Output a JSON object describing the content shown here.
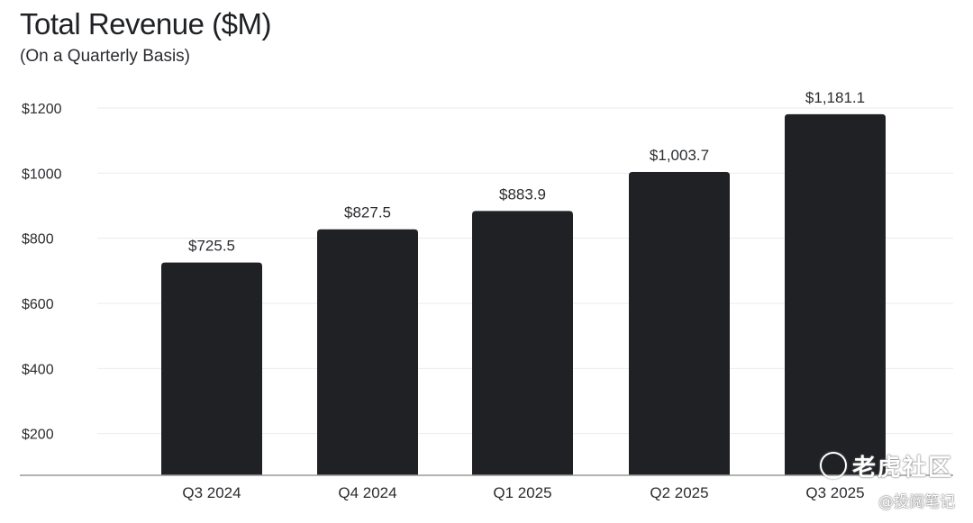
{
  "chart_data": {
    "type": "bar",
    "title": "Total Revenue ($M)",
    "subtitle": "(On a Quarterly Basis)",
    "xlabel": "",
    "ylabel": "",
    "categories": [
      "Q3 2024",
      "Q4 2024",
      "Q1 2025",
      "Q2 2025",
      "Q3 2025"
    ],
    "values": [
      725.5,
      827.5,
      883.9,
      1003.7,
      1181.1
    ],
    "value_labels": [
      "$725.5",
      "$827.5",
      "$883.9",
      "$1,003.7",
      "$1,181.1"
    ],
    "y_ticks": [
      200,
      400,
      600,
      800,
      1000,
      1200
    ],
    "y_tick_labels": [
      "$200",
      "$400",
      "$600",
      "$800",
      "$1000",
      "$1200"
    ],
    "ylim": [
      0,
      1200
    ],
    "grid": true,
    "legend": "none",
    "colors": {
      "bar": "#1f2124",
      "grid": "#ebebeb",
      "axis": "#9a9a9a"
    }
  },
  "watermark": {
    "logo_text": "老虎社区",
    "sub_text": "@投阅笔记"
  }
}
